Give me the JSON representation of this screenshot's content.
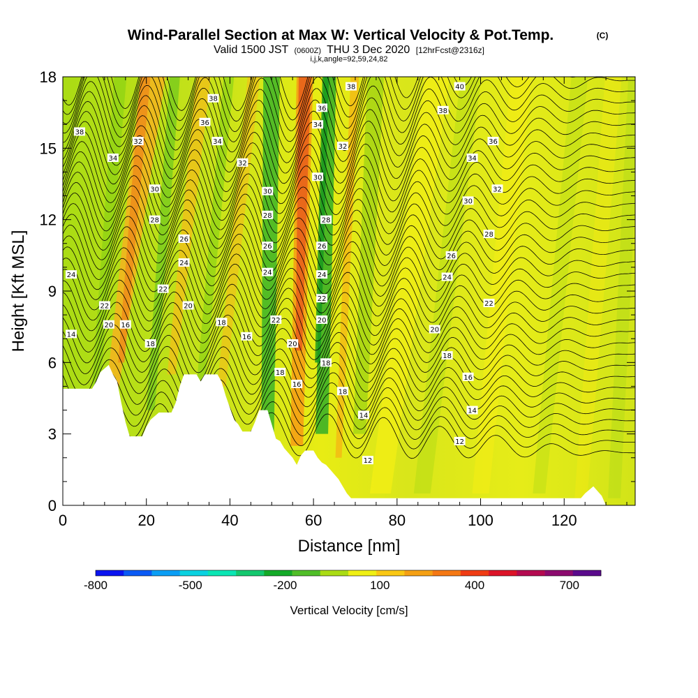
{
  "chart_data": {
    "type": "heatmap",
    "title": "Wind-Parallel Section at Max W: Vertical Velocity & Pot.Temp.",
    "title_mark": "(C)",
    "subtitle_valid": "Valid 1500 JST",
    "subtitle_z": "(0600Z)",
    "subtitle_date": "THU 3 Dec 2020",
    "subtitle_fcst": "[12hrFcst@2316z]",
    "subtitle_ijk": "i,j,k,angle=92,59,24,82",
    "xlabel": "Distance [nm]",
    "ylabel": "Height [Kft MSL]",
    "xlim": [
      0,
      137
    ],
    "ylim": [
      0,
      18
    ],
    "x_ticks": [
      0,
      20,
      40,
      60,
      80,
      100,
      120
    ],
    "y_ticks": [
      0,
      3,
      6,
      9,
      12,
      15,
      18
    ],
    "colorbar": {
      "label": "Vertical Velocity [cm/s]",
      "tick_labels": [
        "-800",
        "-500",
        "-200",
        "100",
        "400",
        "700"
      ],
      "tick_values": [
        -800,
        -500,
        -200,
        100,
        400,
        700
      ],
      "range": [
        -800,
        800
      ],
      "colors": [
        "#0a14f0",
        "#0a5af5",
        "#0a9ef5",
        "#0ad2e1",
        "#0ae6b4",
        "#14c86e",
        "#14aa28",
        "#50be28",
        "#aadc14",
        "#f0f014",
        "#fac814",
        "#f5a014",
        "#f57814",
        "#f03c14",
        "#dc1428",
        "#b40a50",
        "#8c0a6e",
        "#5a0a8c"
      ]
    },
    "theta_contour_labels": [
      {
        "text": "14",
        "x": 2,
        "y": 7.2
      },
      {
        "text": "24",
        "x": 2,
        "y": 9.7
      },
      {
        "text": "38",
        "x": 4,
        "y": 15.7
      },
      {
        "text": "22",
        "x": 10,
        "y": 8.4
      },
      {
        "text": "20",
        "x": 11,
        "y": 7.6
      },
      {
        "text": "34",
        "x": 12,
        "y": 14.6
      },
      {
        "text": "16",
        "x": 15,
        "y": 7.6
      },
      {
        "text": "32",
        "x": 18,
        "y": 15.3
      },
      {
        "text": "30",
        "x": 22,
        "y": 13.3
      },
      {
        "text": "28",
        "x": 22,
        "y": 12
      },
      {
        "text": "18",
        "x": 21,
        "y": 6.8
      },
      {
        "text": "22",
        "x": 24,
        "y": 9.1
      },
      {
        "text": "26",
        "x": 29,
        "y": 11.2
      },
      {
        "text": "24",
        "x": 29,
        "y": 10.2
      },
      {
        "text": "20",
        "x": 30,
        "y": 8.4
      },
      {
        "text": "38",
        "x": 36,
        "y": 17.1
      },
      {
        "text": "36",
        "x": 34,
        "y": 16.1
      },
      {
        "text": "34",
        "x": 37,
        "y": 15.3
      },
      {
        "text": "18",
        "x": 38,
        "y": 7.7
      },
      {
        "text": "32",
        "x": 43,
        "y": 14.4
      },
      {
        "text": "16",
        "x": 44,
        "y": 7.1
      },
      {
        "text": "30",
        "x": 49,
        "y": 13.2
      },
      {
        "text": "28",
        "x": 49,
        "y": 12.2
      },
      {
        "text": "26",
        "x": 49,
        "y": 10.9
      },
      {
        "text": "24",
        "x": 49,
        "y": 9.8
      },
      {
        "text": "22",
        "x": 51,
        "y": 7.8
      },
      {
        "text": "20",
        "x": 55,
        "y": 6.8
      },
      {
        "text": "18",
        "x": 52,
        "y": 5.6
      },
      {
        "text": "16",
        "x": 56,
        "y": 5.1
      },
      {
        "text": "38",
        "x": 69,
        "y": 17.6
      },
      {
        "text": "36",
        "x": 62,
        "y": 16.7
      },
      {
        "text": "34",
        "x": 61,
        "y": 16
      },
      {
        "text": "32",
        "x": 67,
        "y": 15.1
      },
      {
        "text": "30",
        "x": 61,
        "y": 13.8
      },
      {
        "text": "28",
        "x": 63,
        "y": 12
      },
      {
        "text": "26",
        "x": 62,
        "y": 10.9
      },
      {
        "text": "24",
        "x": 62,
        "y": 9.7
      },
      {
        "text": "22",
        "x": 62,
        "y": 8.7
      },
      {
        "text": "20",
        "x": 62,
        "y": 7.8
      },
      {
        "text": "18",
        "x": 63,
        "y": 6
      },
      {
        "text": "18",
        "x": 67,
        "y": 4.8
      },
      {
        "text": "14",
        "x": 72,
        "y": 3.8
      },
      {
        "text": "12",
        "x": 73,
        "y": 1.9
      },
      {
        "text": "40",
        "x": 95,
        "y": 17.6
      },
      {
        "text": "38",
        "x": 91,
        "y": 16.6
      },
      {
        "text": "36",
        "x": 103,
        "y": 15.3
      },
      {
        "text": "34",
        "x": 98,
        "y": 14.6
      },
      {
        "text": "32",
        "x": 104,
        "y": 13.3
      },
      {
        "text": "30",
        "x": 97,
        "y": 12.8
      },
      {
        "text": "28",
        "x": 102,
        "y": 11.4
      },
      {
        "text": "26",
        "x": 93,
        "y": 10.5
      },
      {
        "text": "24",
        "x": 92,
        "y": 9.6
      },
      {
        "text": "22",
        "x": 102,
        "y": 8.5
      },
      {
        "text": "20",
        "x": 89,
        "y": 7.4
      },
      {
        "text": "18",
        "x": 92,
        "y": 6.3
      },
      {
        "text": "16",
        "x": 97,
        "y": 5.4
      },
      {
        "text": "14",
        "x": 98,
        "y": 4
      },
      {
        "text": "12",
        "x": 95,
        "y": 2.7
      }
    ],
    "terrain_kft": [
      [
        0,
        4.9
      ],
      [
        4,
        4.9
      ],
      [
        7,
        4.9
      ],
      [
        8,
        5.2
      ],
      [
        9,
        5.6
      ],
      [
        11,
        5.9
      ],
      [
        12,
        5.5
      ],
      [
        13,
        5.2
      ],
      [
        14,
        4.3
      ],
      [
        15,
        3.5
      ],
      [
        16,
        2.9
      ],
      [
        19,
        2.9
      ],
      [
        20,
        3.3
      ],
      [
        21,
        3.6
      ],
      [
        23,
        3.9
      ],
      [
        26,
        3.9
      ],
      [
        27,
        4.3
      ],
      [
        28,
        5
      ],
      [
        29,
        5.5
      ],
      [
        32,
        5.5
      ],
      [
        33,
        5.2
      ],
      [
        34,
        5.5
      ],
      [
        37,
        5.5
      ],
      [
        38,
        5.2
      ],
      [
        39,
        4.6
      ],
      [
        40,
        4.1
      ],
      [
        41,
        3.6
      ],
      [
        42,
        3.4
      ],
      [
        43,
        3.1
      ],
      [
        45,
        3.1
      ],
      [
        46,
        3.5
      ],
      [
        47,
        4
      ],
      [
        49,
        4
      ],
      [
        50,
        3.4
      ],
      [
        51,
        2.8
      ],
      [
        52,
        2.7
      ],
      [
        53,
        2.4
      ],
      [
        54,
        2.2
      ],
      [
        55,
        2
      ],
      [
        56,
        1.7
      ],
      [
        57,
        2.1
      ],
      [
        58,
        2.3
      ],
      [
        60,
        2.3
      ],
      [
        61,
        2
      ],
      [
        62,
        1.8
      ],
      [
        63,
        1.7
      ],
      [
        64,
        1.5
      ],
      [
        65,
        1.3
      ],
      [
        66,
        1.1
      ],
      [
        67,
        0.8
      ],
      [
        68,
        0.5
      ],
      [
        69,
        0.3
      ],
      [
        73,
        0.3
      ],
      [
        124,
        0.3
      ],
      [
        125,
        0.5
      ],
      [
        127,
        0.8
      ],
      [
        129,
        0.4
      ],
      [
        130,
        0
      ],
      [
        137,
        0
      ]
    ]
  }
}
